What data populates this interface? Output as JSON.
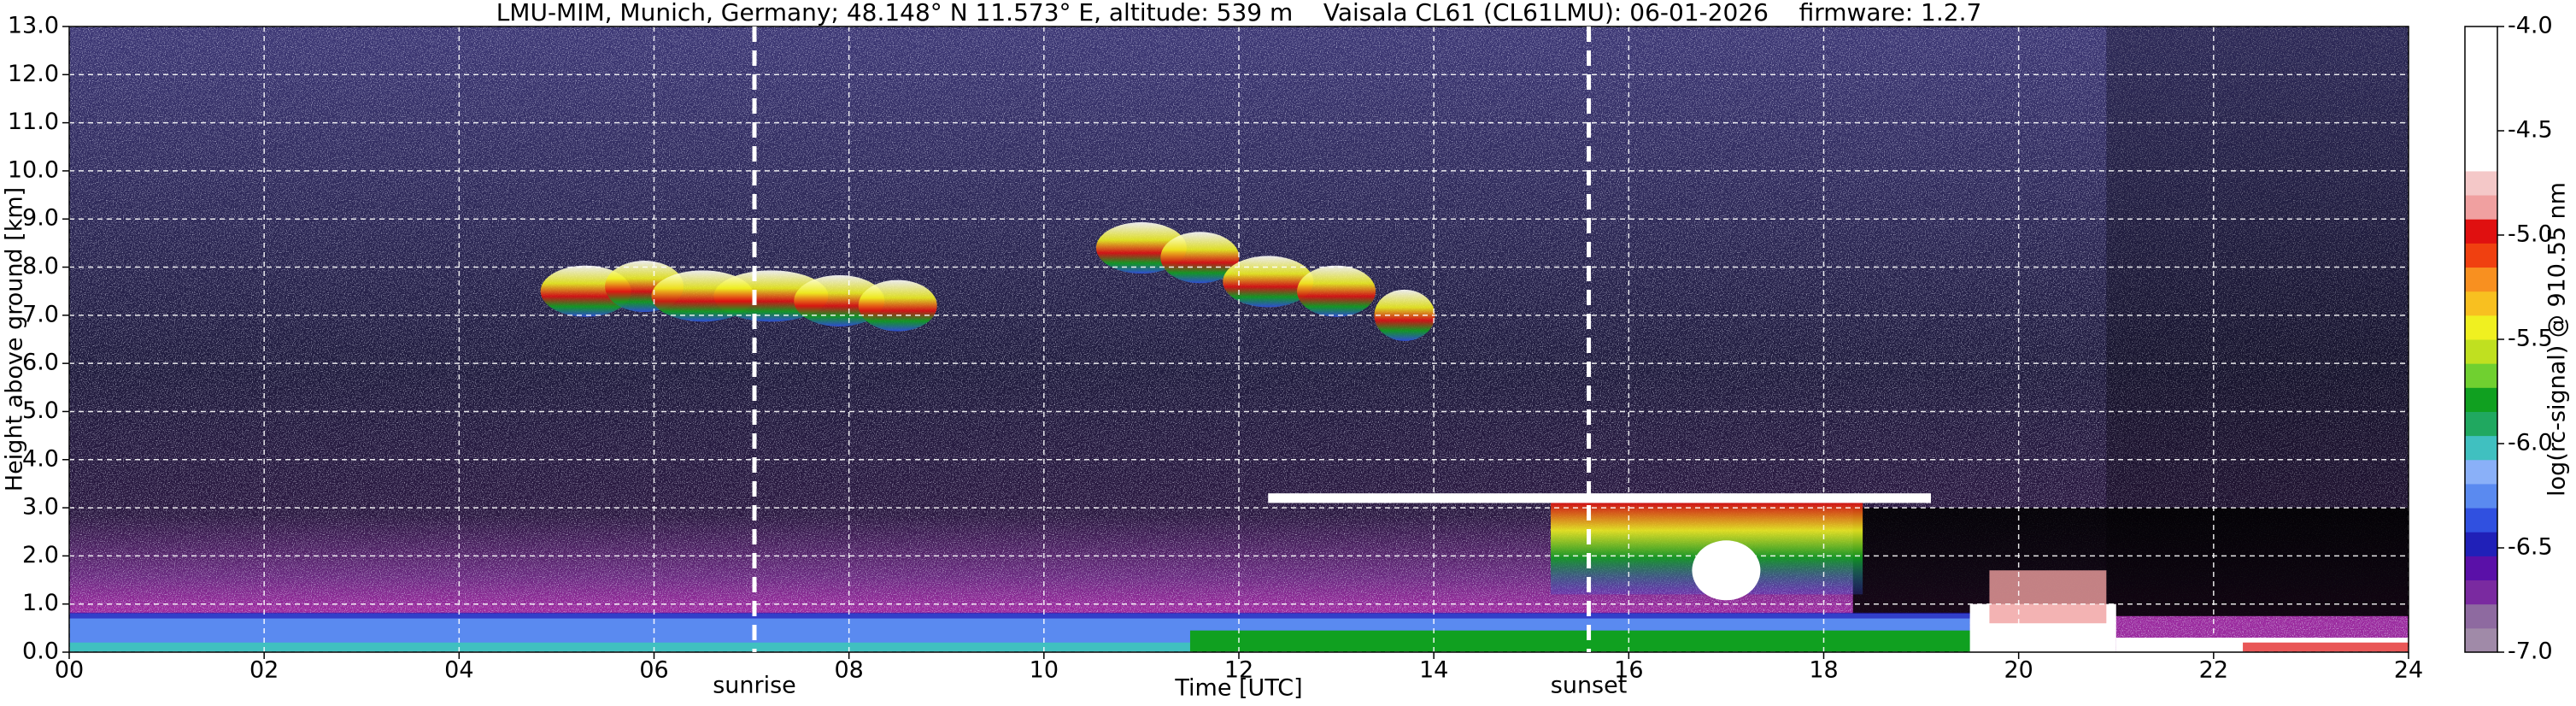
{
  "chart_data": {
    "type": "heatmap",
    "title": "LMU-MIM, Munich, Germany; 48.148° N 11.573° E, altitude: 539 m    Vaisala CL61 (CL61LMU): 06-01-2026    firmware: 1.2.7",
    "xlabel": "Time [UTC]",
    "ylabel": "Height above ground [km]",
    "xlim": [
      0,
      24
    ],
    "ylim": [
      0,
      13
    ],
    "xticks": [
      {
        "value": 0,
        "label": "00"
      },
      {
        "value": 2,
        "label": "02"
      },
      {
        "value": 4,
        "label": "04"
      },
      {
        "value": 6,
        "label": "06"
      },
      {
        "value": 8,
        "label": "08"
      },
      10,
      12,
      14,
      16,
      18,
      20,
      22,
      24
    ],
    "yticks": [
      {
        "value": 0,
        "label": "0.0"
      },
      {
        "value": 1,
        "label": "1.0"
      },
      {
        "value": 2,
        "label": "2.0"
      },
      {
        "value": 3,
        "label": "3.0"
      },
      {
        "value": 4,
        "label": "4.0"
      },
      {
        "value": 5,
        "label": "5.0"
      },
      {
        "value": 6,
        "label": "6.0"
      },
      {
        "value": 7,
        "label": "7.0"
      },
      {
        "value": 8,
        "label": "8.0"
      },
      {
        "value": 9,
        "label": "9.0"
      },
      {
        "value": 10,
        "label": "10.0"
      },
      {
        "value": 11,
        "label": "11.0"
      },
      {
        "value": 12,
        "label": "12.0"
      },
      {
        "value": 13,
        "label": "13.0"
      }
    ],
    "grid": true,
    "grid_color": "#ffffff",
    "annotations": [
      {
        "text": "sunrise",
        "x": 7.03
      },
      {
        "text": "sunset",
        "x": 15.59
      }
    ],
    "colorbar": {
      "label": "log(rc-signal) @ 910.55 nm",
      "lim": [
        -7,
        -4
      ],
      "ticks": [
        {
          "value": -7,
          "label": "-7.0"
        },
        -6.5,
        {
          "value": -6,
          "label": "-6.0"
        },
        -5.5,
        {
          "value": -5,
          "label": "-5.0"
        },
        -4.5,
        {
          "value": -4,
          "label": "-4.0"
        }
      ],
      "colormap": [
        "#a08aa8",
        "#8e6aa0",
        "#7a2aa0",
        "#5a10a8",
        "#2020b8",
        "#3050e0",
        "#5a8af0",
        "#8ab0f8",
        "#40c0c0",
        "#20a860",
        "#10a020",
        "#70d030",
        "#c0e020",
        "#f0f020",
        "#f8c020",
        "#f89020",
        "#f04010",
        "#e01010",
        "#f0a0a0",
        "#f4c8c8",
        "#ffffff",
        "#ffffff",
        "#ffffff",
        "#ffffff",
        "#ffffff",
        "#ffffff"
      ]
    }
  }
}
